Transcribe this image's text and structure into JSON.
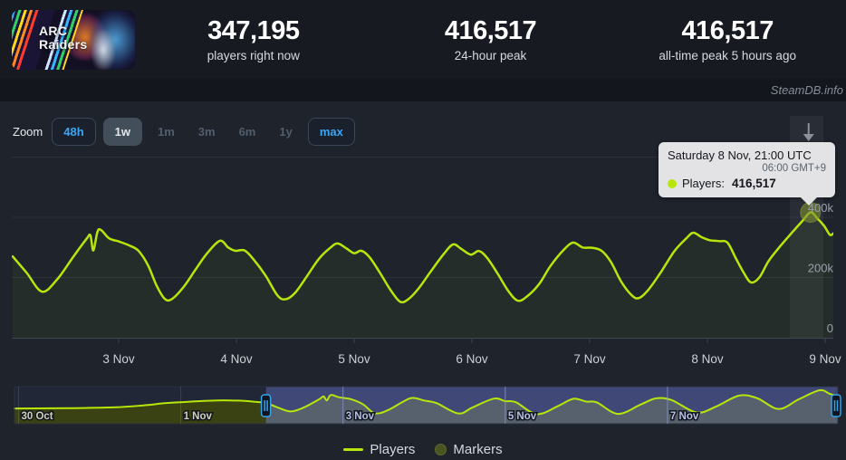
{
  "header": {
    "game_title": "ARC Raiders",
    "stats": [
      {
        "value": "347,195",
        "caption": "players right now"
      },
      {
        "value": "416,517",
        "caption": "24-hour peak"
      },
      {
        "value": "416,517",
        "caption": "all-time peak 5 hours ago"
      }
    ]
  },
  "watermark": "SteamDB.info",
  "zoom_bar": {
    "label": "Zoom",
    "buttons": [
      {
        "label": "48h",
        "state": "enabled"
      },
      {
        "label": "1w",
        "state": "selected"
      },
      {
        "label": "1m",
        "state": "disabled"
      },
      {
        "label": "3m",
        "state": "disabled"
      },
      {
        "label": "6m",
        "state": "disabled"
      },
      {
        "label": "1y",
        "state": "disabled"
      },
      {
        "label": "max",
        "state": "enabled"
      }
    ]
  },
  "tooltip": {
    "title": "Saturday 8 Nov, 21:00 UTC",
    "subtitle": "06:00 GMT+9",
    "series_label": "Players:",
    "series_value": "416,517"
  },
  "legend": [
    {
      "label": "Players",
      "swatch": "line"
    },
    {
      "label": "Markers",
      "swatch": "circle"
    }
  ],
  "colors": {
    "line_green": "#b7e60a",
    "accent_blue": "#3aa6f5",
    "marker_olive": "#7c8c33",
    "tooltip_bg": "#e9e9eb",
    "nav_selection_fill": "#3f4877",
    "nav_below_line": "#56616d",
    "nav_unselected_fill": "#3a4113",
    "grid": "rgba(255,255,255,0.07)"
  },
  "chart_data": {
    "type": "line",
    "series_name": "Players",
    "t_unit": "days since 3 Nov 00:00 UTC",
    "x_ticks": [
      {
        "t": 0,
        "label": "3 Nov"
      },
      {
        "t": 1,
        "label": "4 Nov"
      },
      {
        "t": 2,
        "label": "5 Nov"
      },
      {
        "t": 3,
        "label": "6 Nov"
      },
      {
        "t": 4,
        "label": "7 Nov"
      },
      {
        "t": 5,
        "label": "8 Nov"
      },
      {
        "t": 6,
        "label": "9 Nov"
      }
    ],
    "y_ticks": [
      {
        "value_k": 400,
        "label": "400k"
      },
      {
        "value_k": 200,
        "label": "200k"
      },
      {
        "value_k": 0,
        "label": "0"
      }
    ],
    "ylim_k": [
      0,
      740
    ],
    "points_tk": [
      [
        -0.9,
        270
      ],
      [
        -0.78,
        215
      ],
      [
        -0.65,
        153
      ],
      [
        -0.52,
        195
      ],
      [
        -0.38,
        272
      ],
      [
        -0.27,
        330
      ],
      [
        -0.24,
        340
      ],
      [
        -0.215,
        290
      ],
      [
        -0.18,
        352
      ],
      [
        -0.15,
        358
      ],
      [
        -0.08,
        330
      ],
      [
        0.0,
        320
      ],
      [
        0.1,
        305
      ],
      [
        0.17,
        288
      ],
      [
        0.25,
        240
      ],
      [
        0.32,
        175
      ],
      [
        0.39,
        130
      ],
      [
        0.45,
        128
      ],
      [
        0.55,
        168
      ],
      [
        0.65,
        225
      ],
      [
        0.75,
        280
      ],
      [
        0.86,
        322
      ],
      [
        0.93,
        300
      ],
      [
        0.99,
        289
      ],
      [
        1.07,
        290
      ],
      [
        1.15,
        258
      ],
      [
        1.25,
        205
      ],
      [
        1.35,
        140
      ],
      [
        1.42,
        128
      ],
      [
        1.5,
        150
      ],
      [
        1.6,
        205
      ],
      [
        1.7,
        262
      ],
      [
        1.8,
        300
      ],
      [
        1.86,
        313
      ],
      [
        1.93,
        298
      ],
      [
        2.0,
        281
      ],
      [
        2.06,
        289
      ],
      [
        2.13,
        268
      ],
      [
        2.22,
        215
      ],
      [
        2.31,
        158
      ],
      [
        2.39,
        120
      ],
      [
        2.46,
        128
      ],
      [
        2.55,
        165
      ],
      [
        2.65,
        220
      ],
      [
        2.76,
        278
      ],
      [
        2.84,
        310
      ],
      [
        2.91,
        295
      ],
      [
        2.99,
        276
      ],
      [
        3.06,
        288
      ],
      [
        3.13,
        265
      ],
      [
        3.22,
        212
      ],
      [
        3.31,
        155
      ],
      [
        3.39,
        123
      ],
      [
        3.47,
        138
      ],
      [
        3.57,
        178
      ],
      [
        3.67,
        240
      ],
      [
        3.78,
        292
      ],
      [
        3.86,
        316
      ],
      [
        3.94,
        300
      ],
      [
        4.02,
        299
      ],
      [
        4.1,
        289
      ],
      [
        4.18,
        252
      ],
      [
        4.27,
        185
      ],
      [
        4.36,
        140
      ],
      [
        4.42,
        132
      ],
      [
        4.5,
        160
      ],
      [
        4.6,
        215
      ],
      [
        4.72,
        288
      ],
      [
        4.82,
        330
      ],
      [
        4.88,
        349
      ],
      [
        4.95,
        334
      ],
      [
        5.02,
        324
      ],
      [
        5.1,
        321
      ],
      [
        5.17,
        316
      ],
      [
        5.24,
        265
      ],
      [
        5.31,
        215
      ],
      [
        5.37,
        184
      ],
      [
        5.44,
        200
      ],
      [
        5.52,
        255
      ],
      [
        5.62,
        305
      ],
      [
        5.72,
        350
      ],
      [
        5.8,
        385
      ],
      [
        5.875,
        416.5
      ],
      [
        5.93,
        398
      ],
      [
        5.99,
        372
      ],
      [
        6.04,
        342
      ],
      [
        6.07,
        347
      ]
    ],
    "marker": {
      "t": 5.875,
      "players_k": 416.5
    },
    "navigator": {
      "x_ticks": [
        {
          "t": -4,
          "label": "30 Oct",
          "region": "unselected"
        },
        {
          "t": -2,
          "label": "1 Nov",
          "region": "unselected"
        },
        {
          "t": 0,
          "label": "3 Nov",
          "region": "selected"
        },
        {
          "t": 2,
          "label": "5 Nov",
          "region": "selected"
        },
        {
          "t": 4,
          "label": "7 Nov",
          "region": "selected"
        }
      ],
      "t_range": [
        -4.05,
        6.1
      ],
      "selection_t": [
        -0.95,
        6.1
      ],
      "points_tk": [
        [
          -4.05,
          190
        ],
        [
          -3.6,
          192
        ],
        [
          -3.2,
          196
        ],
        [
          -2.8,
          205
        ],
        [
          -2.5,
          225
        ],
        [
          -2.2,
          255
        ],
        [
          -2.0,
          268
        ],
        [
          -1.8,
          280
        ],
        [
          -1.55,
          290
        ],
        [
          -1.3,
          288
        ],
        [
          -1.1,
          275
        ],
        [
          -0.95,
          258
        ],
        [
          -0.8,
          200
        ],
        [
          -0.65,
          153
        ],
        [
          -0.5,
          195
        ],
        [
          -0.3,
          300
        ],
        [
          -0.24,
          340
        ],
        [
          -0.2,
          290
        ],
        [
          -0.15,
          358
        ],
        [
          -0.05,
          330
        ],
        [
          0.1,
          305
        ],
        [
          0.25,
          240
        ],
        [
          0.39,
          130
        ],
        [
          0.55,
          168
        ],
        [
          0.75,
          280
        ],
        [
          0.86,
          322
        ],
        [
          1.0,
          289
        ],
        [
          1.15,
          258
        ],
        [
          1.42,
          128
        ],
        [
          1.6,
          205
        ],
        [
          1.86,
          313
        ],
        [
          2.0,
          281
        ],
        [
          2.13,
          268
        ],
        [
          2.39,
          120
        ],
        [
          2.65,
          220
        ],
        [
          2.84,
          310
        ],
        [
          3.0,
          276
        ],
        [
          3.13,
          265
        ],
        [
          3.39,
          123
        ],
        [
          3.67,
          240
        ],
        [
          3.86,
          316
        ],
        [
          4.05,
          295
        ],
        [
          4.36,
          140
        ],
        [
          4.6,
          215
        ],
        [
          4.88,
          349
        ],
        [
          5.1,
          321
        ],
        [
          5.37,
          184
        ],
        [
          5.62,
          305
        ],
        [
          5.875,
          416.5
        ],
        [
          6.0,
          372
        ],
        [
          6.1,
          347
        ]
      ]
    }
  }
}
